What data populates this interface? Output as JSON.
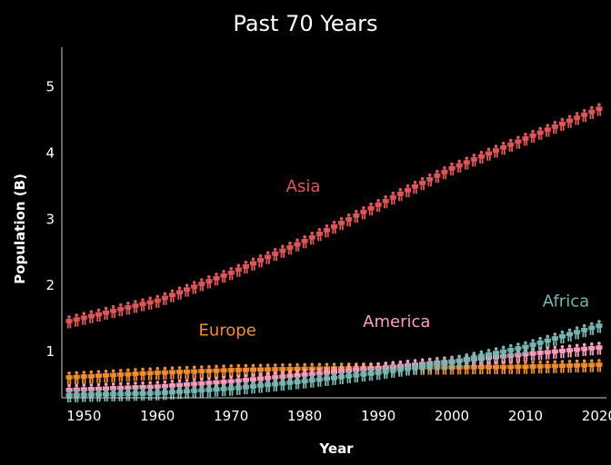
{
  "chart_data": {
    "type": "scatter",
    "title": "Past 70 Years",
    "xlabel": "Year",
    "ylabel": "Population (B)",
    "xlim": [
      1947,
      2021
    ],
    "ylim": [
      0.3,
      5.6
    ],
    "x_ticks": [
      1950,
      1960,
      1970,
      1980,
      1990,
      2000,
      2010,
      2020
    ],
    "y_ticks": [
      1,
      2,
      3,
      4,
      5
    ],
    "grid": false,
    "marker": "person-icon",
    "x_start": 1948,
    "x_end": 2020,
    "series": [
      {
        "name": "Europe",
        "color": "#f28e2b",
        "x": [
          1948,
          1960,
          1970,
          1980,
          1990,
          2000,
          2010,
          2020
        ],
        "values": [
          0.59,
          0.66,
          0.7,
          0.72,
          0.73,
          0.74,
          0.75,
          0.78
        ]
      },
      {
        "name": "America",
        "color": "#ff9dc0",
        "x": [
          1948,
          1960,
          1970,
          1980,
          1990,
          2000,
          2010,
          2020
        ],
        "values": [
          0.4,
          0.45,
          0.53,
          0.63,
          0.73,
          0.83,
          0.94,
          1.04
        ]
      },
      {
        "name": "Africa",
        "color": "#76b7b2",
        "x": [
          1948,
          1960,
          1970,
          1980,
          1990,
          2000,
          2010,
          2020
        ],
        "values": [
          0.32,
          0.35,
          0.42,
          0.53,
          0.66,
          0.82,
          1.05,
          1.37
        ]
      },
      {
        "name": "Asia",
        "color": "#e15759",
        "x": [
          1948,
          1960,
          1970,
          1980,
          1990,
          2000,
          2010,
          2020
        ],
        "values": [
          1.44,
          1.75,
          2.17,
          2.65,
          3.2,
          3.75,
          4.2,
          4.65
        ]
      }
    ],
    "annotations": [
      {
        "text": "Asia",
        "series": "Asia",
        "x": 1979.8,
        "y": 3.42
      },
      {
        "text": "Europe",
        "series": "Europe",
        "x": 1969.5,
        "y": 1.24
      },
      {
        "text": "America",
        "series": "America",
        "x": 1992.5,
        "y": 1.37
      },
      {
        "text": "Africa",
        "series": "Africa",
        "x": 2015.5,
        "y": 1.68
      }
    ]
  }
}
